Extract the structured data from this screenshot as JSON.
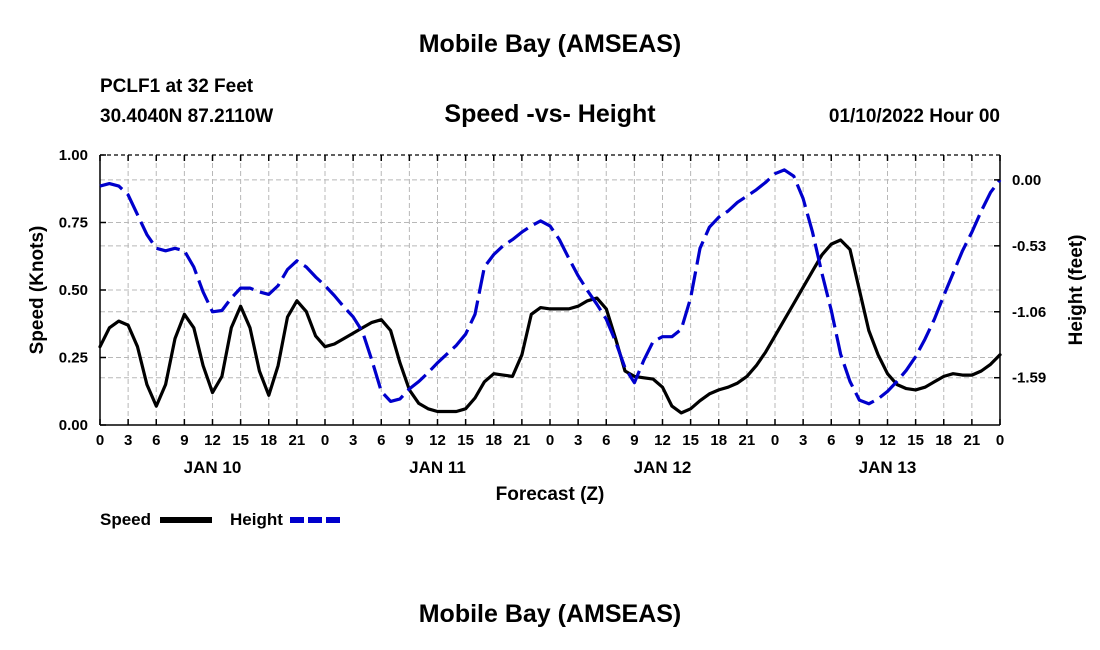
{
  "page": {
    "title_top": "Mobile Bay (AMSEAS)",
    "title_bottom": "Mobile Bay (AMSEAS)",
    "station": "PCLF1 at 32 Feet",
    "coords": "30.4040N  87.2110W",
    "datetime": "01/10/2022 Hour 00"
  },
  "legend": {
    "speed_label": "Speed",
    "height_label": "Height"
  },
  "chart_data": {
    "type": "line",
    "title": "Speed -vs- Height",
    "xlabel": "Forecast (Z)",
    "ylabel_left": "Speed (Knots)",
    "ylabel_right": "Height (feet)",
    "xlim": [
      0,
      96
    ],
    "x_ticks": [
      0,
      3,
      6,
      9,
      12,
      15,
      18,
      21,
      24,
      27,
      30,
      33,
      36,
      39,
      42,
      45,
      48,
      51,
      54,
      57,
      60,
      63,
      66,
      69,
      72,
      75,
      78,
      81,
      84,
      87,
      90,
      93,
      96
    ],
    "x_tick_labels": [
      "0",
      "3",
      "6",
      "9",
      "12",
      "15",
      "18",
      "21",
      "0",
      "3",
      "6",
      "9",
      "12",
      "15",
      "18",
      "21",
      "0",
      "3",
      "6",
      "9",
      "12",
      "15",
      "18",
      "21",
      "0",
      "3",
      "6",
      "9",
      "12",
      "15",
      "18",
      "21",
      "0"
    ],
    "day_labels": [
      {
        "x": 12,
        "label": "JAN 10"
      },
      {
        "x": 36,
        "label": "JAN 11"
      },
      {
        "x": 60,
        "label": "JAN 12"
      },
      {
        "x": 84,
        "label": "JAN 13"
      }
    ],
    "ylim_left": [
      0,
      1
    ],
    "y_left_ticks": [
      0,
      0.25,
      0.5,
      0.75,
      1.0
    ],
    "y_left_tick_labels": [
      "0.00",
      "0.25",
      "0.50",
      "0.75",
      "1.00"
    ],
    "ylim_right": [
      -1.97,
      0.2
    ],
    "y_right_ticks": [
      0,
      -0.53,
      -1.06,
      -1.59
    ],
    "y_right_tick_labels": [
      "0.00",
      "-0.53",
      "-1.06",
      "-1.59"
    ],
    "grid": true,
    "series": [
      {
        "name": "Speed",
        "axis": "left",
        "color": "#000000",
        "style": "solid",
        "points": [
          [
            0,
            0.29
          ],
          [
            1,
            0.36
          ],
          [
            2,
            0.385
          ],
          [
            3,
            0.37
          ],
          [
            4,
            0.29
          ],
          [
            5,
            0.15
          ],
          [
            6,
            0.07
          ],
          [
            7,
            0.15
          ],
          [
            8,
            0.32
          ],
          [
            9,
            0.41
          ],
          [
            10,
            0.36
          ],
          [
            11,
            0.22
          ],
          [
            12,
            0.12
          ],
          [
            13,
            0.18
          ],
          [
            14,
            0.36
          ],
          [
            15,
            0.44
          ],
          [
            16,
            0.36
          ],
          [
            17,
            0.2
          ],
          [
            18,
            0.11
          ],
          [
            19,
            0.22
          ],
          [
            20,
            0.4
          ],
          [
            21,
            0.46
          ],
          [
            22,
            0.42
          ],
          [
            23,
            0.33
          ],
          [
            24,
            0.29
          ],
          [
            25,
            0.3
          ],
          [
            26,
            0.32
          ],
          [
            27,
            0.34
          ],
          [
            28,
            0.36
          ],
          [
            29,
            0.38
          ],
          [
            30,
            0.39
          ],
          [
            31,
            0.35
          ],
          [
            32,
            0.23
          ],
          [
            33,
            0.13
          ],
          [
            34,
            0.08
          ],
          [
            35,
            0.06
          ],
          [
            36,
            0.05
          ],
          [
            37,
            0.05
          ],
          [
            38,
            0.05
          ],
          [
            39,
            0.06
          ],
          [
            40,
            0.1
          ],
          [
            41,
            0.16
          ],
          [
            42,
            0.19
          ],
          [
            43,
            0.185
          ],
          [
            44,
            0.18
          ],
          [
            45,
            0.26
          ],
          [
            46,
            0.41
          ],
          [
            47,
            0.435
          ],
          [
            48,
            0.43
          ],
          [
            49,
            0.43
          ],
          [
            50,
            0.43
          ],
          [
            51,
            0.44
          ],
          [
            52,
            0.46
          ],
          [
            53,
            0.47
          ],
          [
            54,
            0.43
          ],
          [
            55,
            0.32
          ],
          [
            56,
            0.2
          ],
          [
            57,
            0.18
          ],
          [
            58,
            0.175
          ],
          [
            59,
            0.17
          ],
          [
            60,
            0.14
          ],
          [
            61,
            0.07
          ],
          [
            62,
            0.045
          ],
          [
            63,
            0.06
          ],
          [
            64,
            0.09
          ],
          [
            65,
            0.115
          ],
          [
            66,
            0.13
          ],
          [
            67,
            0.14
          ],
          [
            68,
            0.155
          ],
          [
            69,
            0.18
          ],
          [
            70,
            0.22
          ],
          [
            71,
            0.27
          ],
          [
            72,
            0.33
          ],
          [
            73,
            0.39
          ],
          [
            74,
            0.45
          ],
          [
            75,
            0.51
          ],
          [
            76,
            0.57
          ],
          [
            77,
            0.63
          ],
          [
            78,
            0.67
          ],
          [
            79,
            0.685
          ],
          [
            80,
            0.65
          ],
          [
            81,
            0.5
          ],
          [
            82,
            0.35
          ],
          [
            83,
            0.26
          ],
          [
            84,
            0.19
          ],
          [
            85,
            0.15
          ],
          [
            86,
            0.135
          ],
          [
            87,
            0.13
          ],
          [
            88,
            0.14
          ],
          [
            89,
            0.16
          ],
          [
            90,
            0.18
          ],
          [
            91,
            0.19
          ],
          [
            92,
            0.185
          ],
          [
            93,
            0.185
          ],
          [
            94,
            0.2
          ],
          [
            95,
            0.225
          ],
          [
            96,
            0.26
          ]
        ]
      },
      {
        "name": "Height",
        "axis": "right",
        "color": "#0000cc",
        "style": "dashed",
        "points": [
          [
            0,
            -0.05
          ],
          [
            1,
            -0.03
          ],
          [
            2,
            -0.05
          ],
          [
            3,
            -0.12
          ],
          [
            4,
            -0.28
          ],
          [
            5,
            -0.44
          ],
          [
            6,
            -0.55
          ],
          [
            7,
            -0.57
          ],
          [
            8,
            -0.55
          ],
          [
            9,
            -0.57
          ],
          [
            10,
            -0.7
          ],
          [
            11,
            -0.9
          ],
          [
            12,
            -1.06
          ],
          [
            13,
            -1.05
          ],
          [
            14,
            -0.95
          ],
          [
            15,
            -0.87
          ],
          [
            16,
            -0.87
          ],
          [
            17,
            -0.9
          ],
          [
            18,
            -0.92
          ],
          [
            19,
            -0.85
          ],
          [
            20,
            -0.72
          ],
          [
            21,
            -0.65
          ],
          [
            22,
            -0.7
          ],
          [
            23,
            -0.78
          ],
          [
            24,
            -0.85
          ],
          [
            25,
            -0.93
          ],
          [
            26,
            -1.02
          ],
          [
            27,
            -1.1
          ],
          [
            28,
            -1.22
          ],
          [
            29,
            -1.45
          ],
          [
            30,
            -1.7
          ],
          [
            31,
            -1.78
          ],
          [
            32,
            -1.76
          ],
          [
            33,
            -1.68
          ],
          [
            34,
            -1.62
          ],
          [
            35,
            -1.55
          ],
          [
            36,
            -1.47
          ],
          [
            37,
            -1.4
          ],
          [
            38,
            -1.33
          ],
          [
            39,
            -1.24
          ],
          [
            40,
            -1.08
          ],
          [
            41,
            -0.7
          ],
          [
            42,
            -0.6
          ],
          [
            43,
            -0.53
          ],
          [
            44,
            -0.48
          ],
          [
            45,
            -0.42
          ],
          [
            46,
            -0.37
          ],
          [
            47,
            -0.33
          ],
          [
            48,
            -0.37
          ],
          [
            49,
            -0.48
          ],
          [
            50,
            -0.63
          ],
          [
            51,
            -0.77
          ],
          [
            52,
            -0.89
          ],
          [
            53,
            -1.0
          ],
          [
            54,
            -1.12
          ],
          [
            55,
            -1.3
          ],
          [
            56,
            -1.51
          ],
          [
            57,
            -1.63
          ],
          [
            58,
            -1.45
          ],
          [
            59,
            -1.3
          ],
          [
            60,
            -1.26
          ],
          [
            61,
            -1.26
          ],
          [
            62,
            -1.2
          ],
          [
            63,
            -0.95
          ],
          [
            64,
            -0.55
          ],
          [
            65,
            -0.38
          ],
          [
            66,
            -0.3
          ],
          [
            67,
            -0.25
          ],
          [
            68,
            -0.18
          ],
          [
            69,
            -0.13
          ],
          [
            70,
            -0.08
          ],
          [
            71,
            -0.02
          ],
          [
            72,
            0.05
          ],
          [
            73,
            0.08
          ],
          [
            74,
            0.03
          ],
          [
            75,
            -0.15
          ],
          [
            76,
            -0.42
          ],
          [
            77,
            -0.75
          ],
          [
            78,
            -1.05
          ],
          [
            79,
            -1.4
          ],
          [
            80,
            -1.62
          ],
          [
            81,
            -1.77
          ],
          [
            82,
            -1.8
          ],
          [
            83,
            -1.76
          ],
          [
            84,
            -1.7
          ],
          [
            85,
            -1.62
          ],
          [
            86,
            -1.53
          ],
          [
            87,
            -1.42
          ],
          [
            88,
            -1.28
          ],
          [
            89,
            -1.12
          ],
          [
            90,
            -0.93
          ],
          [
            91,
            -0.75
          ],
          [
            92,
            -0.57
          ],
          [
            93,
            -0.42
          ],
          [
            94,
            -0.25
          ],
          [
            95,
            -0.1
          ],
          [
            96,
            0.0
          ]
        ]
      }
    ]
  }
}
